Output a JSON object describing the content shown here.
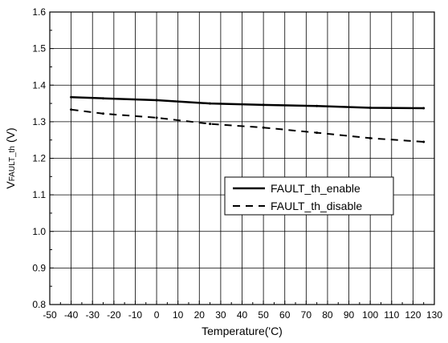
{
  "chart_data": {
    "type": "line",
    "title": "",
    "xlabel": "Temperature('C)",
    "ylabel_main": "V",
    "ylabel_sub": "FAULT_th",
    "ylabel_unit": "(V)",
    "xlim": [
      -50,
      130
    ],
    "ylim": [
      0.8,
      1.6
    ],
    "x_ticks": [
      -50,
      -40,
      -30,
      -20,
      -10,
      0,
      10,
      20,
      30,
      40,
      50,
      60,
      70,
      80,
      90,
      100,
      110,
      120,
      130
    ],
    "x_tick_labels": [
      "-50",
      "-40",
      "-30",
      "-20",
      "-10",
      "0",
      "10",
      "20",
      "30",
      "40",
      "50",
      "60",
      "70",
      "80",
      "90",
      "100",
      "110",
      "120",
      "130"
    ],
    "y_ticks": [
      0.8,
      0.9,
      1.0,
      1.1,
      1.2,
      1.3,
      1.4,
      1.5,
      1.6
    ],
    "y_tick_labels": [
      "0.8",
      "0.9",
      "1.0",
      "1.1",
      "1.2",
      "1.3",
      "1.4",
      "1.5",
      "1.6"
    ],
    "grid": true,
    "legend_position": "center-right",
    "series": [
      {
        "name": "FAULT_th_enable",
        "style": "solid",
        "color": "#000000",
        "x": [
          -40,
          -25,
          0,
          25,
          50,
          75,
          100,
          125
        ],
        "y": [
          1.367,
          1.364,
          1.359,
          1.35,
          1.346,
          1.343,
          1.338,
          1.337
        ]
      },
      {
        "name": "FAULT_th_disable",
        "style": "dashed",
        "color": "#000000",
        "x": [
          -40,
          -25,
          0,
          25,
          50,
          75,
          100,
          125
        ],
        "y": [
          1.333,
          1.322,
          1.311,
          1.294,
          1.284,
          1.27,
          1.255,
          1.245
        ]
      }
    ]
  }
}
